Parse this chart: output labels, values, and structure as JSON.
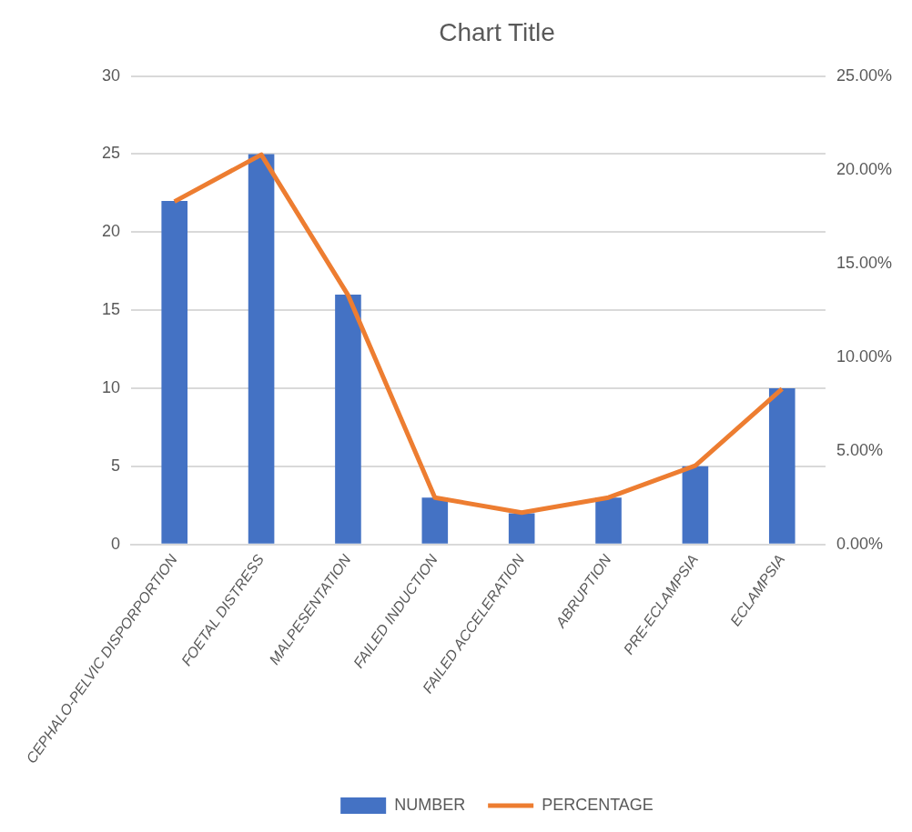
{
  "chart_data": {
    "type": "bar",
    "title": "Chart Title",
    "categories": [
      "CEPHALO-PELVIC DISPORPORTION",
      "FOETAL DISTRESS",
      "MALPESENTATION",
      "FAILED INDUCTION",
      "FAILED ACCELERATION",
      "ABRUPTION",
      "PRE-ECLAMPSIA",
      "ECLAMPSIA"
    ],
    "series": [
      {
        "name": "NUMBER",
        "color": "#4472c4",
        "values": [
          22,
          25,
          16,
          3,
          2,
          3,
          5,
          10
        ]
      },
      {
        "name": "PERCENTAGE",
        "type": "line",
        "axis": "y2",
        "color": "#ed7d31",
        "values": [
          18.3,
          20.8,
          13.3,
          2.5,
          1.7,
          2.5,
          4.2,
          8.3
        ]
      }
    ],
    "ylim": [
      0,
      30
    ],
    "yticks": [
      0,
      5,
      10,
      15,
      20,
      25,
      30
    ],
    "y2lim": [
      0,
      25
    ],
    "y2ticks": [
      {
        "value": 0,
        "label": "0.00%"
      },
      {
        "value": 5,
        "label": "5.00%"
      },
      {
        "value": 10,
        "label": "10.00%"
      },
      {
        "value": 15,
        "label": "15.00%"
      },
      {
        "value": 20,
        "label": "20.00%"
      },
      {
        "value": 25,
        "label": "25.00%"
      }
    ],
    "grid": "y",
    "legend": "bottom",
    "marker": "none"
  }
}
